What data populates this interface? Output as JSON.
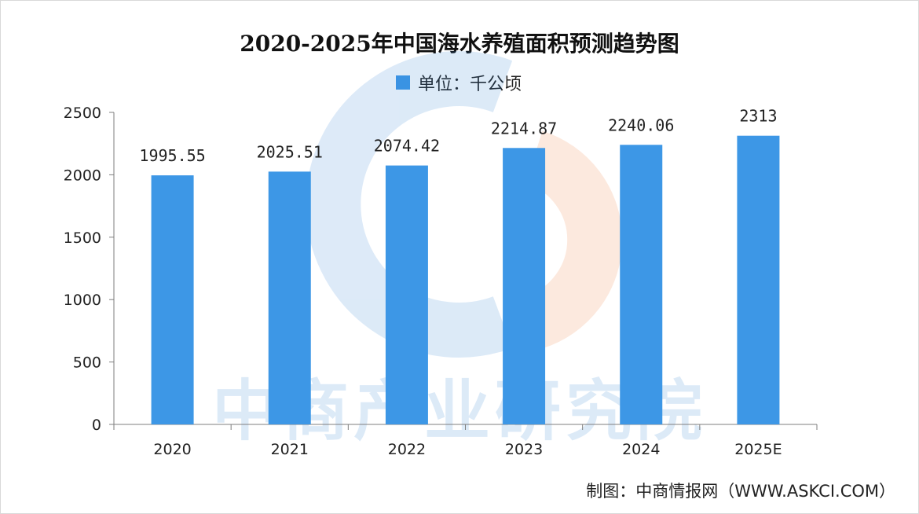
{
  "chart_data": {
    "type": "bar",
    "title": "2020-2025年中国海水养殖面积预测趋势图",
    "legend": [
      "单位：千公顷"
    ],
    "legend_position": "top",
    "categories": [
      "2020",
      "2021",
      "2022",
      "2023",
      "2024",
      "2025E"
    ],
    "series": [
      {
        "name": "单位：千公顷",
        "values": [
          1995.55,
          2025.51,
          2074.42,
          2214.87,
          2240.06,
          2313
        ]
      }
    ],
    "data_labels": [
      "1995.55",
      "2025.51",
      "2074.42",
      "2214.87",
      "2240.06",
      "2313"
    ],
    "yticks": [
      "0",
      "500",
      "1000",
      "1500",
      "2000",
      "2500"
    ],
    "ylim": [
      0,
      2500
    ],
    "xlabel": "",
    "ylabel": "",
    "grid": false
  },
  "colors": {
    "bar": "#3d97e6",
    "axis": "#7f7f7f"
  },
  "watermark_text": "中商产业研究院",
  "source_text": "制图：中商情报网（WWW.ASKCI.COM）"
}
